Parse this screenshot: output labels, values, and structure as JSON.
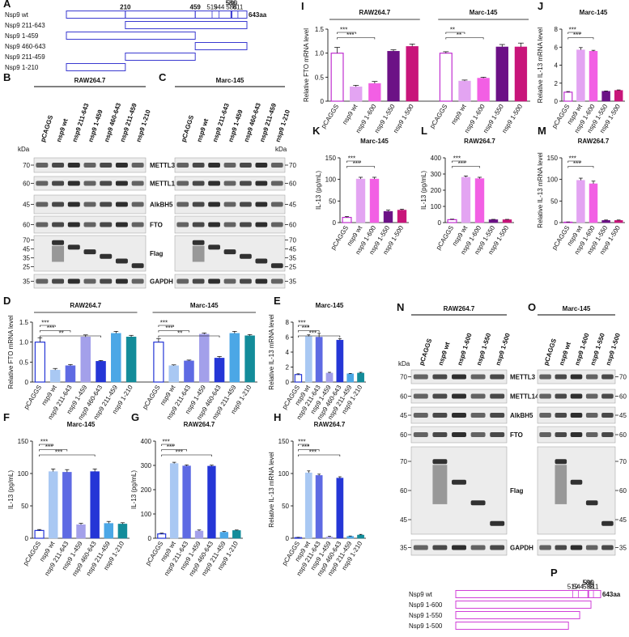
{
  "chart_data": [
    {
      "type": "bar",
      "panel": "D",
      "ylabel": "Relative FTO mRNA level",
      "ylim": [
        0,
        1.5
      ],
      "yticks": [
        0,
        0.5,
        {
          "value": 1,
          "label": "1.0"
        },
        1.5
      ],
      "colors": [
        "#ffffff",
        "#a9c8f3",
        "#5e6ae3",
        "#a3a0ea",
        "#2536d6",
        "#4ba7e6",
        "#138c9a"
      ],
      "outline": "#2536d6",
      "groups": [
        {
          "title": "RAW264.7",
          "categories": [
            "pCAGGS",
            "nsp9 wt",
            "nsp9 211-643",
            "nsp9 1-459",
            "nsp9 460-643",
            "nsp9 211-459",
            "nsp9 1-210"
          ],
          "values": [
            1.0,
            0.3,
            0.41,
            1.13,
            0.52,
            1.22,
            1.13
          ],
          "errors": [
            0.11,
            0.04,
            0.03,
            0.05,
            0.02,
            0.05,
            0.04
          ],
          "brackets": [
            {
              "pair": [
                0,
                1
              ],
              "label": "***"
            },
            {
              "pair": [
                0,
                2
              ],
              "label": "***"
            },
            {
              "pair": [
                0,
                4
              ],
              "label": "**"
            }
          ]
        },
        {
          "title": "Marc-145",
          "categories": [
            "pCAGGS",
            "nsp9 wt",
            "nsp9 211-643",
            "nsp9 1-459",
            "nsp9 460-643",
            "nsp9 211-459",
            "nsp9 1-210"
          ],
          "values": [
            1.0,
            0.41,
            0.53,
            1.2,
            0.6,
            1.22,
            1.16
          ],
          "errors": [
            0.09,
            0.02,
            0.02,
            0.03,
            0.04,
            0.05,
            0.03
          ],
          "brackets": [
            {
              "pair": [
                0,
                1
              ],
              "label": "***"
            },
            {
              "pair": [
                0,
                2
              ],
              "label": "***"
            },
            {
              "pair": [
                0,
                4
              ],
              "label": "**"
            }
          ]
        }
      ]
    },
    {
      "type": "bar",
      "panel": "E",
      "ylabel": "Relative IL-13 mRNA level",
      "ylim": [
        0,
        8
      ],
      "yticks": [
        0,
        2,
        4,
        6,
        8
      ],
      "colors": [
        "#ffffff",
        "#a9c8f3",
        "#5e6ae3",
        "#a3a0ea",
        "#2536d6",
        "#4ba7e6",
        "#138c9a"
      ],
      "outline": "#2536d6",
      "groups": [
        {
          "title": "Marc-145",
          "categories": [
            "pCAGGS",
            "nsp9 wt",
            "nsp9 211-643",
            "nsp9 1-459",
            "nsp9 460-643",
            "nsp9 211-459",
            "nsp9 1-210"
          ],
          "values": [
            1.0,
            6.1,
            6.0,
            1.2,
            5.6,
            1.1,
            1.2
          ],
          "errors": [
            0.1,
            0.2,
            0.5,
            0.1,
            0.2,
            0.05,
            0.1
          ],
          "brackets": [
            {
              "pair": [
                0,
                1
              ],
              "label": "***"
            },
            {
              "pair": [
                0,
                2
              ],
              "label": "***"
            },
            {
              "pair": [
                0,
                4
              ],
              "label": "***"
            }
          ]
        }
      ]
    },
    {
      "type": "bar",
      "panel": "F",
      "ylabel": "IL-13 (pg/mL)",
      "ylim": [
        0,
        150
      ],
      "yticks": [
        0,
        50,
        100,
        150
      ],
      "colors": [
        "#ffffff",
        "#a9c8f3",
        "#5e6ae3",
        "#a3a0ea",
        "#2536d6",
        "#4ba7e6",
        "#138c9a"
      ],
      "outline": "#2536d6",
      "groups": [
        {
          "title": "Marc-145",
          "categories": [
            "pCAGGS",
            "nsp9 wt",
            "nsp9 211-643",
            "nsp9 1-459",
            "nsp9 460-643",
            "nsp9 211-459",
            "nsp9 1-210"
          ],
          "values": [
            12,
            103,
            102,
            21,
            103,
            23,
            22
          ],
          "errors": [
            1.5,
            4,
            4,
            2,
            4,
            3,
            2
          ],
          "brackets": [
            {
              "pair": [
                0,
                1
              ],
              "label": "***"
            },
            {
              "pair": [
                0,
                2
              ],
              "label": "***"
            },
            {
              "pair": [
                0,
                4
              ],
              "label": "***"
            }
          ]
        }
      ]
    },
    {
      "type": "bar",
      "panel": "G",
      "ylabel": "IL-13 (pg/mL)",
      "ylim": [
        0,
        400
      ],
      "yticks": [
        0,
        100,
        200,
        300,
        400
      ],
      "colors": [
        "#ffffff",
        "#a9c8f3",
        "#5e6ae3",
        "#a3a0ea",
        "#2536d6",
        "#4ba7e6",
        "#138c9a"
      ],
      "outline": "#2536d6",
      "groups": [
        {
          "title": "RAW264.7",
          "categories": [
            "pCAGGS",
            "nsp9 wt",
            "nsp9 211-643",
            "nsp9 1-459",
            "nsp9 460-643",
            "nsp9 211-459",
            "nsp9 1-210"
          ],
          "values": [
            18,
            308,
            298,
            30,
            297,
            25,
            32
          ],
          "errors": [
            3,
            5,
            4,
            4,
            4,
            3,
            2
          ],
          "brackets": [
            {
              "pair": [
                0,
                1
              ],
              "label": "***"
            },
            {
              "pair": [
                0,
                2
              ],
              "label": "***"
            },
            {
              "pair": [
                0,
                4
              ],
              "label": "***"
            }
          ]
        }
      ]
    },
    {
      "type": "bar",
      "panel": "H",
      "ylabel": "Relative IL-13 mRNA level",
      "ylim": [
        0,
        150
      ],
      "yticks": [
        0,
        50,
        100,
        150
      ],
      "colors": [
        "#ffffff",
        "#a9c8f3",
        "#5e6ae3",
        "#a3a0ea",
        "#2536d6",
        "#4ba7e6",
        "#138c9a"
      ],
      "outline": "#2536d6",
      "groups": [
        {
          "title": "RAW264.7",
          "categories": [
            "pCAGGS",
            "nsp9 wt",
            "nsp9 211-643",
            "nsp9 1-459",
            "nsp9 460-643",
            "nsp9 211-459",
            "nsp9 1-210"
          ],
          "values": [
            1,
            101,
            97,
            2,
            93,
            3,
            5
          ],
          "errors": [
            0.5,
            3,
            2,
            1,
            2,
            0.5,
            1
          ],
          "brackets": [
            {
              "pair": [
                0,
                1
              ],
              "label": "***"
            },
            {
              "pair": [
                0,
                2
              ],
              "label": "***"
            },
            {
              "pair": [
                0,
                4
              ],
              "label": "***"
            }
          ]
        }
      ]
    },
    {
      "type": "bar",
      "panel": "I",
      "ylabel": "Relative FTO mRNA level",
      "ylim": [
        0,
        1.5
      ],
      "yticks": [
        0,
        0.5,
        {
          "value": 1,
          "label": "1.0"
        },
        1.5
      ],
      "colors": [
        "#ffffff",
        "#e3a4f2",
        "#f25fe4",
        "#6c1186",
        "#c8157a"
      ],
      "outline": "#c030d0",
      "groups": [
        {
          "title": "RAW264.7",
          "categories": [
            "pCAGGS",
            "nsp9 wt",
            "nsp9 1-600",
            "nsp9 1-550",
            "nsp9 1-500"
          ],
          "values": [
            1.0,
            0.3,
            0.37,
            1.04,
            1.14
          ],
          "errors": [
            0.12,
            0.03,
            0.04,
            0.03,
            0.05
          ],
          "brackets": [
            {
              "pair": [
                0,
                1
              ],
              "label": "***"
            },
            {
              "pair": [
                0,
                2
              ],
              "label": "***"
            }
          ]
        },
        {
          "title": "Marc-145",
          "categories": [
            "pCAGGS",
            "nsp9 wt",
            "nsp9 1-600",
            "nsp9 1-550",
            "nsp9 1-500"
          ],
          "values": [
            1.0,
            0.42,
            0.48,
            1.13,
            1.13
          ],
          "errors": [
            0.03,
            0.02,
            0.02,
            0.05,
            0.08
          ],
          "brackets": [
            {
              "pair": [
                0,
                1
              ],
              "label": "**"
            },
            {
              "pair": [
                0,
                2
              ],
              "label": "**"
            }
          ]
        }
      ]
    },
    {
      "type": "bar",
      "panel": "J",
      "ylabel": "Relative IL-13 mRNA level",
      "ylim": [
        0,
        8
      ],
      "yticks": [
        0,
        2,
        4,
        6,
        8
      ],
      "colors": [
        "#ffffff",
        "#e3a4f2",
        "#f25fe4",
        "#6c1186",
        "#c8157a"
      ],
      "outline": "#c030d0",
      "groups": [
        {
          "title": "Marc-145",
          "categories": [
            "pCAGGS",
            "nsp9 wt",
            "nsp9 1-600",
            "nsp9 1-550",
            "nsp9 1-500"
          ],
          "values": [
            1.0,
            5.7,
            5.55,
            1.1,
            1.2
          ],
          "errors": [
            0.07,
            0.25,
            0.1,
            0.03,
            0.05
          ],
          "brackets": [
            {
              "pair": [
                0,
                1
              ],
              "label": "***"
            },
            {
              "pair": [
                0,
                2
              ],
              "label": "***"
            }
          ]
        }
      ]
    },
    {
      "type": "bar",
      "panel": "K",
      "ylabel": "IL-13 (pg/mL)",
      "ylim": [
        0,
        150
      ],
      "yticks": [
        0,
        50,
        100,
        150
      ],
      "colors": [
        "#ffffff",
        "#e3a4f2",
        "#f25fe4",
        "#6c1186",
        "#c8157a"
      ],
      "outline": "#c030d0",
      "groups": [
        {
          "title": "Marc-145",
          "categories": [
            "pCAGGS",
            "nsp9 wt",
            "nsp9 1-600",
            "nsp9 1-550",
            "nsp9 1-500"
          ],
          "values": [
            12,
            101,
            101,
            26,
            29
          ],
          "errors": [
            2,
            4,
            4,
            3,
            2
          ],
          "brackets": [
            {
              "pair": [
                0,
                1
              ],
              "label": "***"
            },
            {
              "pair": [
                0,
                2
              ],
              "label": "***"
            }
          ]
        }
      ]
    },
    {
      "type": "bar",
      "panel": "L",
      "ylabel": "IL-13 (pg/mL)",
      "ylim": [
        0,
        400
      ],
      "yticks": [
        0,
        100,
        200,
        300,
        400
      ],
      "colors": [
        "#ffffff",
        "#e3a4f2",
        "#f25fe4",
        "#6c1186",
        "#c8157a"
      ],
      "outline": "#c030d0",
      "groups": [
        {
          "title": "RAW264.7",
          "categories": [
            "pCAGGS",
            "nsp9 wt",
            "nsp9 1-600",
            "nsp9 1-550",
            "nsp9 1-500"
          ],
          "values": [
            18,
            280,
            272,
            18,
            18
          ],
          "errors": [
            3,
            8,
            8,
            2,
            2
          ],
          "brackets": [
            {
              "pair": [
                0,
                1
              ],
              "label": "***"
            },
            {
              "pair": [
                0,
                2
              ],
              "label": "***"
            }
          ]
        }
      ]
    },
    {
      "type": "bar",
      "panel": "M",
      "ylabel": "Relative IL-13 mRNA level",
      "ylim": [
        0,
        150
      ],
      "yticks": [
        0,
        50,
        100,
        150
      ],
      "colors": [
        "#ffffff",
        "#e3a4f2",
        "#f25fe4",
        "#6c1186",
        "#c8157a"
      ],
      "outline": "#c030d0",
      "groups": [
        {
          "title": "RAW264.7",
          "categories": [
            "pCAGGS",
            "nsp9 wt",
            "nsp9 1-600",
            "nsp9 1-550",
            "nsp9 1-500"
          ],
          "values": [
            1,
            98,
            90,
            5,
            5
          ],
          "errors": [
            0.5,
            5,
            6,
            1,
            1
          ],
          "brackets": [
            {
              "pair": [
                0,
                1
              ],
              "label": "***"
            },
            {
              "pair": [
                0,
                2
              ],
              "label": "***"
            }
          ]
        }
      ]
    }
  ],
  "construct_maps": [
    {
      "panel": "A",
      "length": 643,
      "length_label": "643aa",
      "color": "#3a3ad0",
      "major_sites": [
        210,
        459
      ],
      "minor_sites": [
        519,
        544,
        586,
        588,
        590,
        611
      ],
      "constructs": [
        {
          "name": "Nsp9 wt",
          "range": [
            1,
            643
          ]
        },
        {
          "name": "Nsp9 211-643",
          "range": [
            211,
            643
          ]
        },
        {
          "name": "Nsp9 1-459",
          "range": [
            1,
            459
          ]
        },
        {
          "name": "Nsp9 460-643",
          "range": [
            460,
            643
          ]
        },
        {
          "name": "Nsp9 211-459",
          "range": [
            211,
            459
          ]
        },
        {
          "name": "Nsp9 1-210",
          "range": [
            1,
            210
          ]
        }
      ]
    },
    {
      "panel": "P",
      "length": 643,
      "length_label": "643aa",
      "color": "#d040d8",
      "major_sites": [],
      "minor_sites": [
        519,
        544,
        586,
        588,
        590,
        611
      ],
      "constructs": [
        {
          "name": "Nsp9 wt",
          "range": [
            1,
            643
          ]
        },
        {
          "name": "Nsp9 1-600",
          "range": [
            1,
            600
          ]
        },
        {
          "name": "Nsp9 1-550",
          "range": [
            1,
            550
          ]
        },
        {
          "name": "Nsp9 1-500",
          "range": [
            1,
            500
          ]
        }
      ]
    }
  ],
  "blots": [
    {
      "panel": "B",
      "title": "RAW264.7",
      "unit": "kDa",
      "lanes": [
        "pCAGGS",
        "nsp9 wt",
        "nsp9 211-643",
        "nsp9 1-459",
        "nsp9 460-643",
        "nsp9 211-459",
        "nsp9 1-210"
      ],
      "rows": [
        {
          "name": "METTL3",
          "markers": [
            70
          ]
        },
        {
          "name": "METTL14",
          "markers": [
            60
          ]
        },
        {
          "name": "AlkBH5",
          "markers": [
            45
          ]
        },
        {
          "name": "FTO",
          "markers": [
            60
          ]
        },
        {
          "name": "Flag",
          "markers": [
            70,
            45,
            35,
            25
          ]
        },
        {
          "name": "GAPDH",
          "markers": [
            35
          ]
        }
      ]
    },
    {
      "panel": "C",
      "title": "Marc-145",
      "unit": "kDa",
      "lanes": [
        "pCAGGS",
        "nsp9 wt",
        "nsp9 211-643",
        "nsp9 1-459",
        "nsp9 460-643",
        "nsp9 211-459",
        "nsp9 1-210"
      ],
      "rows": [
        {
          "markers": [
            70
          ]
        },
        {
          "markers": [
            60
          ]
        },
        {
          "markers": [
            45
          ]
        },
        {
          "markers": [
            60
          ]
        },
        {
          "markers": [
            70,
            45,
            35,
            25
          ]
        },
        {
          "markers": [
            35
          ]
        }
      ]
    },
    {
      "panel": "N",
      "title": "RAW264.7",
      "unit": "kDa",
      "lanes": [
        "pCAGGS",
        "nsp9 wt",
        "nsp9 1-600",
        "nsp9 1-550",
        "nsp9 1-500"
      ],
      "rows": [
        {
          "name": "METTL3",
          "markers": [
            70
          ]
        },
        {
          "name": "METTL14",
          "markers": [
            60
          ]
        },
        {
          "name": "AlkBH5",
          "markers": [
            45
          ]
        },
        {
          "name": "FTO",
          "markers": [
            60
          ]
        },
        {
          "name": "Flag",
          "markers": [
            70,
            60,
            45
          ]
        },
        {
          "name": "GAPDH",
          "markers": [
            35
          ]
        }
      ]
    },
    {
      "panel": "O",
      "title": "Marc-145",
      "lanes": [
        "pCAGGS",
        "nsp9 wt",
        "nsp9 1-600",
        "nsp9 1-550",
        "nsp9 1-500"
      ],
      "rows": [
        {
          "markers": [
            70
          ]
        },
        {
          "markers": [
            60
          ]
        },
        {
          "markers": [
            45
          ]
        },
        {
          "markers": [
            60
          ]
        },
        {
          "markers": [
            70,
            60,
            45
          ]
        },
        {
          "markers": [
            35
          ]
        }
      ]
    }
  ]
}
